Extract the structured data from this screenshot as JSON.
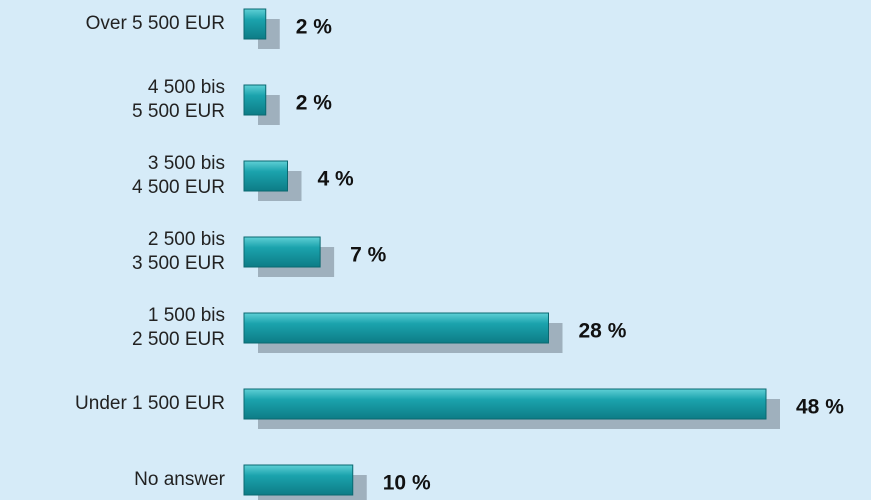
{
  "chart_data": {
    "type": "hbar",
    "categories": [
      [
        "Over 5 500 EUR"
      ],
      [
        "4 500 bis",
        "5 500 EUR"
      ],
      [
        "3 500 bis",
        "4 500 EUR"
      ],
      [
        "2 500 bis",
        "3 500 EUR"
      ],
      [
        "1 500 bis",
        "2 500 EUR"
      ],
      [
        "Under 1 500 EUR"
      ],
      [
        "No answer"
      ]
    ],
    "values": [
      2,
      2,
      4,
      7,
      28,
      48,
      10
    ],
    "value_labels": [
      "2 %",
      "2 %",
      "4 %",
      "7 %",
      "28 %",
      "48 %",
      "10 %"
    ],
    "color": "#1ba3ad"
  }
}
